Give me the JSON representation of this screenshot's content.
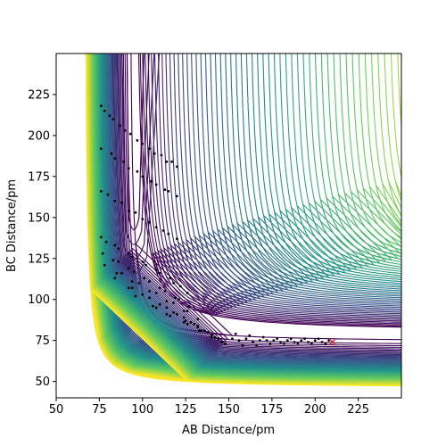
{
  "chart_data": {
    "type": "contour",
    "xlabel": "AB Distance/pm",
    "ylabel": "BC Distance/pm",
    "xlim": [
      50,
      250
    ],
    "ylim": [
      40,
      250
    ],
    "xticks": [
      50,
      75,
      100,
      125,
      150,
      175,
      200,
      225
    ],
    "yticks": [
      50,
      75,
      100,
      125,
      150,
      175,
      200,
      225
    ],
    "grid": false,
    "colormap": [
      "#440154",
      "#3b528b",
      "#21918c",
      "#5ec962",
      "#fde725"
    ],
    "trajectory": {
      "color": "#000000",
      "points": [
        [
          76,
          218
        ],
        [
          83,
          210
        ],
        [
          90,
          203
        ],
        [
          97,
          197
        ],
        [
          104,
          192
        ],
        [
          111,
          188
        ],
        [
          117,
          184
        ],
        [
          120,
          181
        ],
        [
          114,
          184
        ],
        [
          107,
          189
        ],
        [
          100,
          195
        ],
        [
          93,
          201
        ],
        [
          87,
          206
        ],
        [
          81,
          212
        ],
        [
          78,
          215
        ],
        [
          76,
          192
        ],
        [
          84,
          186
        ],
        [
          92,
          180
        ],
        [
          100,
          175
        ],
        [
          108,
          170
        ],
        [
          115,
          166
        ],
        [
          120,
          163
        ],
        [
          113,
          167
        ],
        [
          105,
          172
        ],
        [
          97,
          178
        ],
        [
          89,
          184
        ],
        [
          82,
          189
        ],
        [
          76,
          166
        ],
        [
          84,
          160
        ],
        [
          92,
          154
        ],
        [
          100,
          149
        ],
        [
          108,
          144
        ],
        [
          115,
          140
        ],
        [
          120,
          137
        ],
        [
          112,
          142
        ],
        [
          104,
          147
        ],
        [
          96,
          153
        ],
        [
          88,
          159
        ],
        [
          80,
          164
        ],
        [
          76,
          138
        ],
        [
          84,
          133
        ],
        [
          92,
          128
        ],
        [
          100,
          123
        ],
        [
          108,
          118
        ],
        [
          116,
          113
        ],
        [
          122,
          108
        ],
        [
          126,
          104
        ],
        [
          118,
          110
        ],
        [
          110,
          116
        ],
        [
          102,
          121
        ],
        [
          94,
          126
        ],
        [
          86,
          131
        ],
        [
          79,
          135
        ],
        [
          77,
          128
        ],
        [
          86,
          123
        ],
        [
          95,
          117
        ],
        [
          104,
          111
        ],
        [
          113,
          105
        ],
        [
          121,
          100
        ],
        [
          127,
          96
        ],
        [
          119,
          101
        ],
        [
          110,
          107
        ],
        [
          101,
          113
        ],
        [
          92,
          119
        ],
        [
          83,
          124
        ],
        [
          78,
          121
        ],
        [
          88,
          116
        ],
        [
          98,
          110
        ],
        [
          108,
          104
        ],
        [
          118,
          98
        ],
        [
          126,
          93
        ],
        [
          132,
          88
        ],
        [
          124,
          93
        ],
        [
          114,
          99
        ],
        [
          104,
          105
        ],
        [
          94,
          111
        ],
        [
          85,
          116
        ],
        [
          84,
          113
        ],
        [
          94,
          107
        ],
        [
          104,
          101
        ],
        [
          114,
          95
        ],
        [
          124,
          89
        ],
        [
          132,
          84
        ],
        [
          138,
          80
        ],
        [
          130,
          85
        ],
        [
          120,
          91
        ],
        [
          110,
          97
        ],
        [
          100,
          103
        ],
        [
          92,
          107
        ],
        [
          96,
          102
        ],
        [
          106,
          96
        ],
        [
          116,
          90
        ],
        [
          126,
          85
        ],
        [
          134,
          81
        ],
        [
          140,
          77
        ],
        [
          133,
          81
        ],
        [
          124,
          86
        ],
        [
          114,
          91
        ],
        [
          108,
          95
        ],
        [
          118,
          92
        ],
        [
          128,
          86
        ],
        [
          136,
          81
        ],
        [
          142,
          77
        ],
        [
          146,
          74
        ],
        [
          140,
          78
        ],
        [
          132,
          83
        ],
        [
          125,
          87
        ],
        [
          138,
          80
        ],
        [
          144,
          76
        ],
        [
          148,
          73
        ],
        [
          152,
          76
        ],
        [
          154,
          79
        ],
        [
          156,
          75
        ],
        [
          158,
          72
        ],
        [
          160,
          76
        ],
        [
          162,
          78
        ],
        [
          164,
          74
        ],
        [
          166,
          72
        ],
        [
          168,
          75
        ],
        [
          170,
          77
        ],
        [
          172,
          75
        ],
        [
          174,
          73
        ],
        [
          176,
          75
        ],
        [
          178,
          76
        ],
        [
          180,
          74
        ],
        [
          182,
          73
        ],
        [
          184,
          75
        ],
        [
          186,
          76
        ],
        [
          188,
          74
        ],
        [
          190,
          73
        ],
        [
          192,
          75
        ],
        [
          194,
          76
        ],
        [
          196,
          74
        ],
        [
          198,
          73
        ],
        [
          200,
          75
        ],
        [
          202,
          76
        ],
        [
          204,
          74
        ],
        [
          206,
          73
        ],
        [
          208,
          75
        ],
        [
          210,
          74
        ]
      ]
    },
    "end_marker": {
      "x": 210,
      "y": 74,
      "symbol": "x",
      "color": "#d62728"
    }
  }
}
